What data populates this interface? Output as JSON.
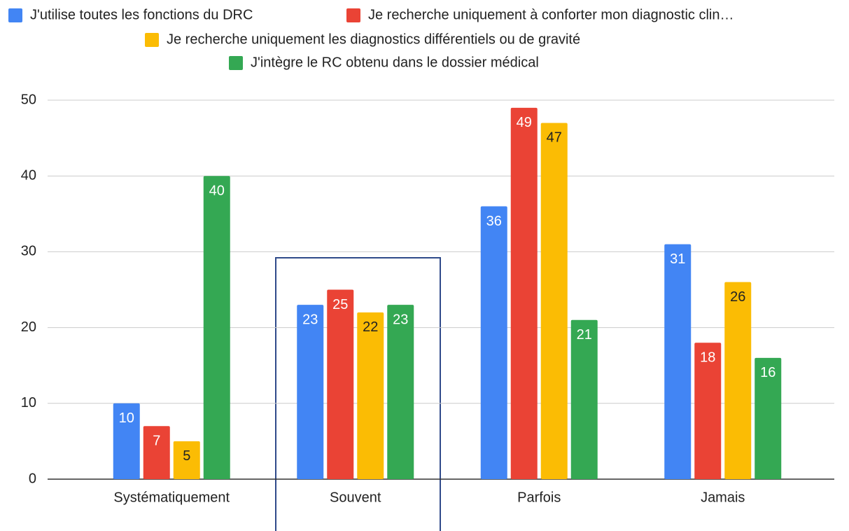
{
  "chart_data": {
    "type": "bar",
    "categories": [
      "Systématiquement",
      "Souvent",
      "Parfois",
      "Jamais"
    ],
    "series": [
      {
        "name": "J'utilise toutes les fonctions du DRC",
        "color": "#4285f4",
        "values": [
          10,
          23,
          36,
          31
        ]
      },
      {
        "name": "Je recherche uniquement à conforter mon diagnostic clin…",
        "color": "#ea4335",
        "values": [
          7,
          25,
          49,
          18
        ]
      },
      {
        "name": "Je recherche uniquement les diagnostics différentiels ou de gravité",
        "color": "#fbbc04",
        "values": [
          5,
          22,
          47,
          26
        ]
      },
      {
        "name": "J'intègre le RC obtenu dans le dossier médical",
        "color": "#34a853",
        "values": [
          40,
          23,
          21,
          16
        ]
      }
    ],
    "ylim": [
      0,
      50
    ],
    "yticks": [
      0,
      10,
      20,
      30,
      40,
      50
    ],
    "grid": true,
    "legend": "top"
  }
}
